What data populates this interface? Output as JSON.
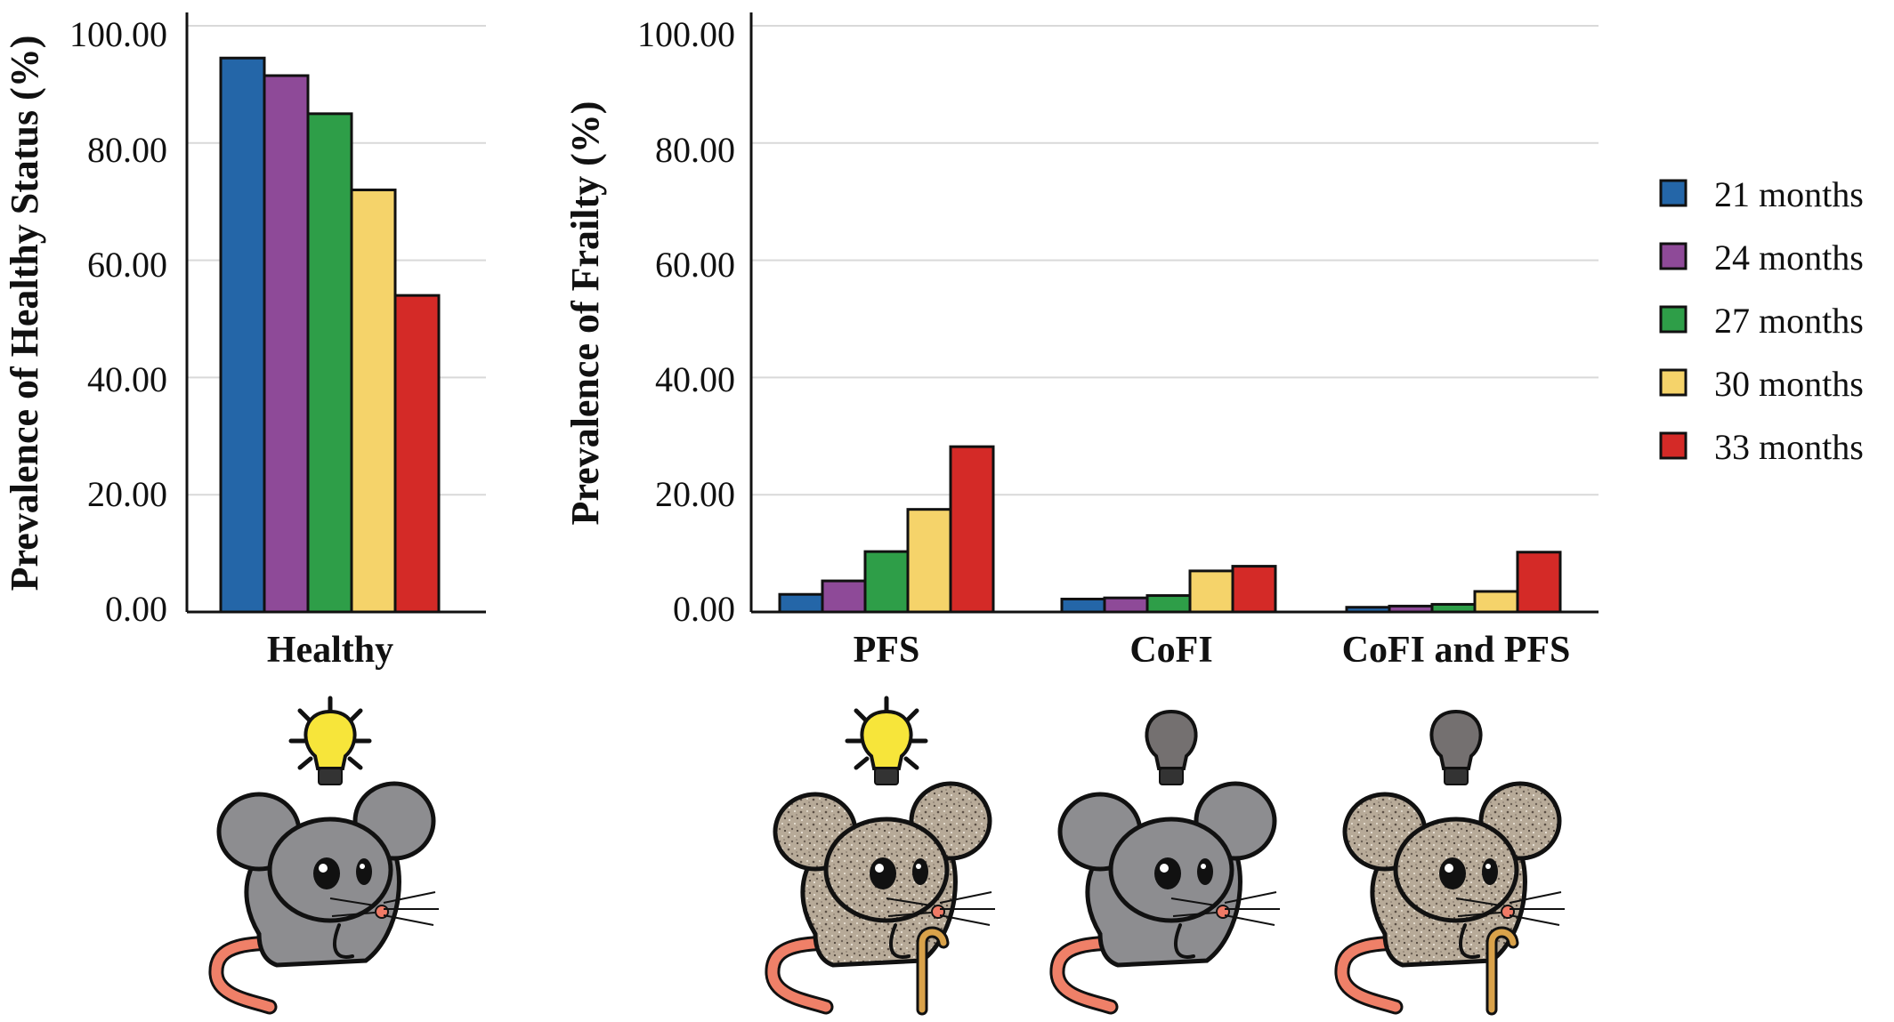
{
  "chart_data": [
    {
      "type": "bar",
      "ylabel": "Prevalence of Healthy Status (%)",
      "xlabel": "",
      "ylim": [
        0,
        100
      ],
      "yticks": [
        "0.00",
        "20.00",
        "40.00",
        "60.00",
        "80.00",
        "100.00"
      ],
      "categories": [
        "Healthy"
      ],
      "series": [
        {
          "name": "21 months",
          "values": [
            94.5
          ]
        },
        {
          "name": "24 months",
          "values": [
            91.5
          ]
        },
        {
          "name": "27 months",
          "values": [
            85.0
          ]
        },
        {
          "name": "30 months",
          "values": [
            72.0
          ]
        },
        {
          "name": "33 months",
          "values": [
            54.0
          ]
        }
      ],
      "grid": true
    },
    {
      "type": "bar",
      "ylabel": "Prevalence of Frailty (%)",
      "xlabel": "",
      "ylim": [
        0,
        100
      ],
      "yticks": [
        "0.00",
        "20.00",
        "40.00",
        "60.00",
        "80.00",
        "100.00"
      ],
      "categories": [
        "PFS",
        "CoFI",
        "CoFI and PFS"
      ],
      "series": [
        {
          "name": "21 months",
          "values": [
            3.0,
            2.2,
            0.8
          ]
        },
        {
          "name": "24 months",
          "values": [
            5.3,
            2.4,
            1.0
          ]
        },
        {
          "name": "27 months",
          "values": [
            10.3,
            2.8,
            1.3
          ]
        },
        {
          "name": "30 months",
          "values": [
            17.5,
            7.0,
            3.5
          ]
        },
        {
          "name": "33 months",
          "values": [
            28.2,
            7.8,
            10.2
          ]
        }
      ],
      "grid": true
    }
  ],
  "legend": {
    "placement": "right",
    "items": [
      "21 months",
      "24 months",
      "27 months",
      "30 months",
      "33 months"
    ]
  },
  "colors": [
    "#2466a8",
    "#8e4a98",
    "#2e9e48",
    "#f5d36a",
    "#d42a27"
  ],
  "illustrations": [
    {
      "category": "Healthy",
      "bulb": "lit",
      "fur": "smooth",
      "cane": false
    },
    {
      "category": "PFS",
      "bulb": "lit",
      "fur": "speckled",
      "cane": true
    },
    {
      "category": "CoFI",
      "bulb": "dark",
      "fur": "smooth",
      "cane": false
    },
    {
      "category": "CoFI and PFS",
      "bulb": "dark",
      "fur": "speckled",
      "cane": true
    }
  ]
}
